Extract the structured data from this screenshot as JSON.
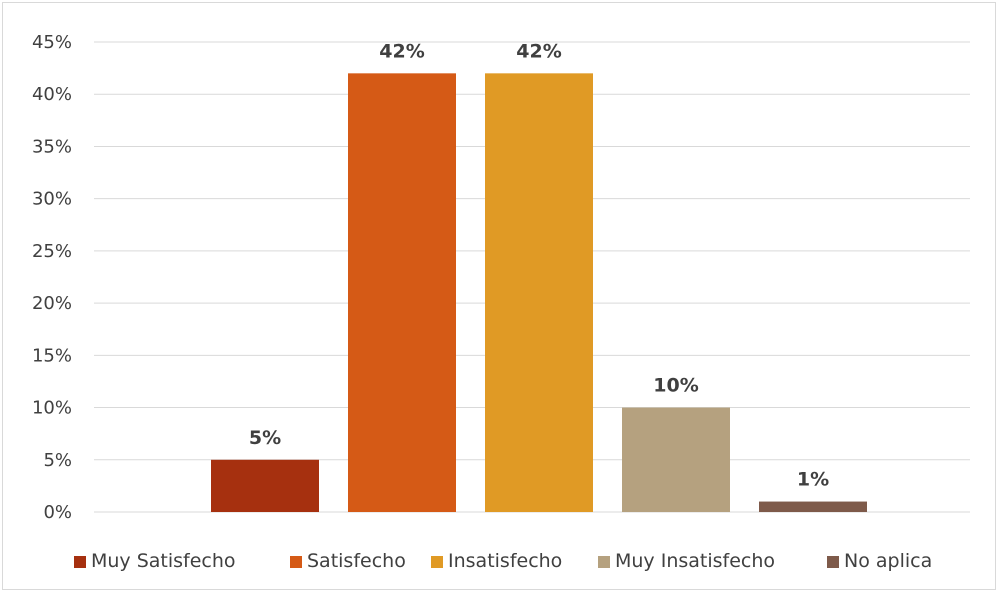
{
  "chart_data": {
    "type": "bar",
    "categories": [
      "Muy Satisfecho",
      "Satisfecho",
      "Insatisfecho",
      "Muy Insatisfecho",
      "No aplica"
    ],
    "values": [
      5,
      42,
      42,
      10,
      1
    ],
    "data_labels": [
      "5%",
      "42%",
      "42%",
      "10%",
      "1%"
    ],
    "colors": [
      "#a6300f",
      "#d55a16",
      "#e09a25",
      "#b5a17f",
      "#7e5a4a"
    ],
    "ylim": [
      0,
      45
    ],
    "yticks": [
      0,
      5,
      10,
      15,
      20,
      25,
      30,
      35,
      40,
      45
    ],
    "ytick_labels": [
      "0%",
      "5%",
      "10%",
      "15%",
      "20%",
      "25%",
      "30%",
      "35%",
      "40%",
      "45%"
    ],
    "grid": true,
    "legend_position": "bottom",
    "gridline_color": "#d9d9d9",
    "text_color": "#404040"
  }
}
